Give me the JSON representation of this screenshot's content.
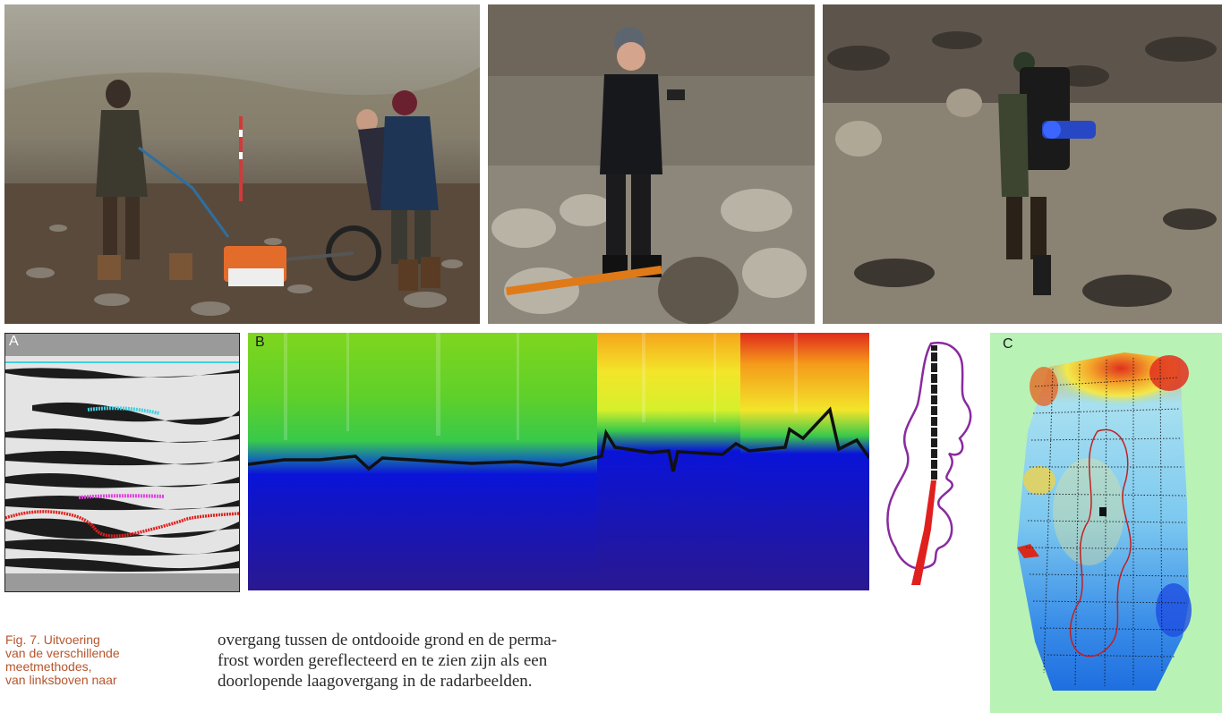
{
  "colors": {
    "accent_caption": "#b5552d",
    "body_text": "#2a2a2a",
    "cyan_reflector": "#3fd0e0",
    "magenta_reflector": "#e040e0",
    "red_reflector": "#e0201e",
    "track_purple": "#8a2aa0",
    "map_background": "#b9f2b5"
  },
  "photos": [
    {
      "name": "photo-ground-radar-team",
      "subject": "three people pulling a ground penetrating radar cart across stony tundra"
    },
    {
      "name": "photo-man-with-probe",
      "subject": "man in black jacket holding a probe and handheld unit among rocks"
    },
    {
      "name": "photo-walker-with-backpack-instrument",
      "subject": "person walking with a backpack-mounted instrument over stony ground"
    }
  ],
  "panels": {
    "a_label": "A",
    "b_label": "B",
    "c_label": "C"
  },
  "icons": {
    "radargram": "radargram-icon",
    "depth_profile": "heatmap-icon",
    "track": "track-map-icon",
    "map": "interpolated-map-icon"
  },
  "caption": {
    "fig_number": "Fig. 7.",
    "lines": [
      "Uitvoering",
      "van de verschillende",
      "meetmethodes,",
      "van linksboven naar"
    ]
  },
  "body": {
    "lines": [
      "overgang tussen de ontdooide grond en de perma-",
      "frost worden gereflecteerd en te zien zijn als een",
      "doorlopende laagovergang in de radarbeelden."
    ]
  }
}
